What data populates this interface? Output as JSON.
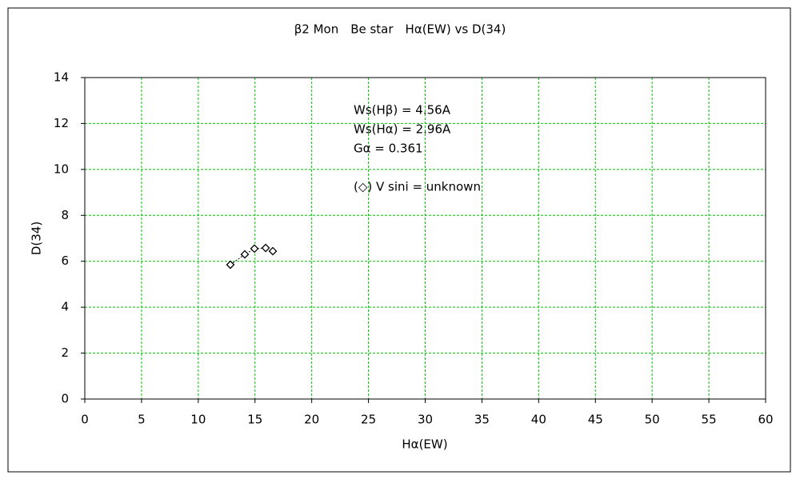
{
  "chart_data": {
    "type": "scatter",
    "title": "β2 Mon　Be star　Hα(EW) vs D(34)",
    "x_label": "Hα(EW)",
    "y_label": "D(34)",
    "x": [
      12.83,
      14.1,
      14.95,
      15.94,
      16.57
    ],
    "series": [
      {
        "color": "#000000",
        "values": [
          5.85,
          6.3,
          6.55,
          6.58,
          6.44
        ]
      }
    ],
    "connect": true,
    "xlim": [
      0,
      60
    ],
    "xticks": [
      0,
      5,
      10,
      15,
      20,
      25,
      30,
      35,
      40,
      45,
      50,
      55,
      60
    ],
    "ylim": [
      0,
      14
    ],
    "yticks": [
      0,
      2,
      4,
      6,
      8,
      10,
      12,
      14
    ],
    "grid": true,
    "grid_color": "#00c000",
    "annotations": [
      "Ws(Hβ) = 4.56A",
      "Ws(Hα) = 2.96A",
      "Gα = 0.361",
      "(◇) V sini = unknown"
    ]
  }
}
